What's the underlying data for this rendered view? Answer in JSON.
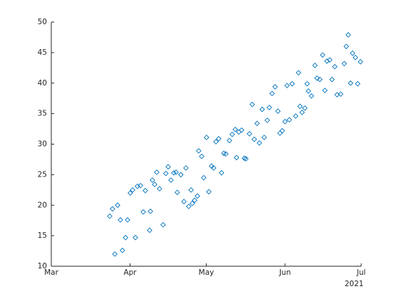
{
  "chart_data": {
    "type": "scatter",
    "marker": "diamond",
    "color": "#0072bd",
    "x": [
      83.0,
      84.1,
      86.1,
      85.0,
      87.2,
      88.0,
      89.2,
      90.0,
      91.1,
      92.0,
      93.1,
      93.9,
      95.1,
      96.2,
      97.0,
      98.7,
      99.0,
      99.8,
      100.7,
      101.5,
      102.6,
      104.0,
      105.1,
      106.0,
      107.1,
      108.2,
      109.1,
      109.6,
      111.0,
      112.2,
      113.0,
      114.1,
      115.0,
      115.5,
      116.4,
      117.5,
      118.0,
      119.2,
      120.0,
      121.1,
      122.0,
      123.1,
      123.9,
      124.8,
      125.9,
      127.0,
      127.9,
      128.7,
      130.1,
      131.2,
      132.4,
      132.9,
      133.8,
      134.9,
      136.0,
      136.6,
      138.0,
      139.1,
      139.9,
      141.0,
      141.9,
      143.0,
      143.8,
      145.0,
      145.8,
      146.9,
      148.1,
      149.2,
      150.0,
      150.9,
      152.0,
      152.8,
      153.7,
      154.8,
      156.2,
      157.3,
      157.9,
      158.7,
      159.8,
      160.7,
      161.2,
      162.4,
      163.8,
      164.6,
      165.7,
      166.8,
      167.7,
      168.5,
      169.6,
      170.5,
      171.6,
      172.5,
      173.9,
      175.3,
      176.1,
      176.9,
      177.8,
      178.6,
      179.7,
      180.6,
      181.7
    ],
    "y": [
      18.2,
      19.4,
      20.0,
      12.0,
      17.6,
      12.6,
      14.7,
      17.6,
      22.0,
      22.5,
      14.7,
      23.1,
      23.2,
      18.9,
      22.4,
      15.9,
      19.0,
      24.1,
      23.4,
      25.4,
      22.7,
      16.8,
      25.2,
      26.3,
      24.1,
      25.3,
      25.4,
      22.1,
      25.0,
      20.6,
      26.1,
      19.8,
      22.5,
      20.3,
      20.8,
      21.5,
      28.9,
      28.0,
      24.5,
      31.1,
      22.2,
      26.4,
      26.1,
      30.4,
      30.9,
      25.3,
      28.5,
      28.4,
      30.6,
      31.6,
      32.4,
      27.8,
      32.0,
      32.3,
      27.7,
      27.6,
      31.7,
      36.5,
      30.8,
      33.4,
      30.2,
      35.7,
      31.1,
      33.9,
      36.0,
      38.3,
      39.4,
      35.4,
      31.8,
      32.2,
      33.7,
      39.6,
      34.0,
      39.9,
      34.6,
      41.7,
      36.2,
      35.2,
      35.9,
      39.9,
      38.7,
      37.9,
      42.9,
      40.8,
      40.6,
      44.6,
      38.8,
      43.6,
      43.8,
      40.6,
      42.7,
      38.1,
      38.2,
      43.2,
      46.0,
      47.9,
      40.0,
      44.9,
      44.2,
      39.9,
      43.5
    ],
    "xlim": [
      60,
      182
    ],
    "xticks": [
      {
        "value": 60,
        "label": "Mar"
      },
      {
        "value": 91,
        "label": "Apr"
      },
      {
        "value": 121,
        "label": "May"
      },
      {
        "value": 152,
        "label": "Jun"
      },
      {
        "value": 182,
        "label": "Jul"
      }
    ],
    "x_year_label": "2021",
    "ylim": [
      10,
      50
    ],
    "yticks": [
      10,
      15,
      20,
      25,
      30,
      35,
      40,
      45,
      50
    ],
    "grid": false
  }
}
